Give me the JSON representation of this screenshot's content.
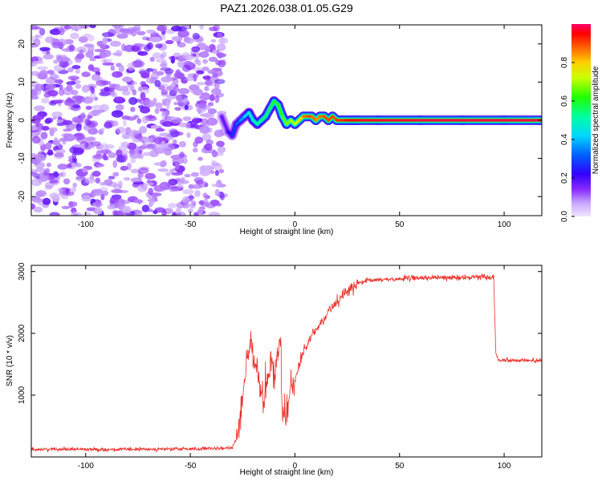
{
  "title": "PAZ1.2026.038.01.05.G29",
  "chart_data": [
    {
      "type": "heatmap",
      "xlabel": "Height of straight line (km)",
      "ylabel": "Frequency (Hz)",
      "xlim": [
        -126,
        118
      ],
      "ylim": [
        -25,
        25
      ],
      "xticks": [
        -100,
        -50,
        0,
        50,
        100
      ],
      "xtick_labels": [
        "-100",
        "-50",
        "0",
        "50",
        "100"
      ],
      "yticks": [
        20,
        10,
        0,
        -10,
        -20
      ],
      "ytick_labels": [
        "20",
        "10",
        "0",
        "-10",
        "-20"
      ],
      "noise_region_x": [
        -126,
        -34
      ],
      "ridge": {
        "x": [
          -35,
          -32,
          -30,
          -28,
          -26,
          -24,
          -22,
          -20,
          -18,
          -16,
          -14,
          -12,
          -10,
          -8,
          -6,
          -4,
          -2,
          0,
          2,
          4,
          6,
          8,
          10,
          12,
          14,
          16,
          18,
          20,
          22,
          24,
          26,
          28,
          30,
          40,
          60,
          80,
          100,
          118
        ],
        "frequency": [
          1,
          -3,
          -4,
          -1,
          0,
          1,
          2,
          0,
          -1,
          0,
          1,
          3,
          5,
          4,
          1,
          -1,
          0,
          -1,
          0,
          1,
          1,
          1,
          0,
          1,
          1,
          0,
          1,
          0,
          0,
          0,
          0,
          0,
          0,
          0,
          0,
          0,
          0,
          0
        ],
        "amplitude": [
          0.15,
          0.2,
          0.25,
          0.3,
          0.35,
          0.4,
          0.45,
          0.5,
          0.5,
          0.55,
          0.55,
          0.55,
          0.6,
          0.6,
          0.65,
          0.65,
          0.7,
          0.7,
          0.75,
          0.85,
          0.9,
          0.9,
          0.85,
          0.85,
          0.9,
          0.9,
          0.9,
          0.9,
          0.92,
          0.93,
          0.95,
          0.95,
          0.96,
          0.97,
          0.98,
          0.98,
          0.98,
          0.98
        ]
      },
      "colorbar": {
        "label": "Normalized spectral amplitude",
        "range": [
          0,
          1
        ],
        "ticks": [
          0.0,
          0.2,
          0.4,
          0.6,
          0.8
        ],
        "tick_labels": [
          "0.0",
          "0.2",
          "0.4",
          "0.6",
          "0.8"
        ]
      }
    },
    {
      "type": "line",
      "xlabel": "Height of straight line (km)",
      "ylabel": "SNR (10 * v/v)",
      "xlim": [
        -126,
        118
      ],
      "ylim": [
        0,
        3100
      ],
      "xticks": [
        -100,
        -50,
        0,
        50,
        100
      ],
      "xtick_labels": [
        "-100",
        "-50",
        "0",
        "50",
        "100"
      ],
      "yticks": [
        1000,
        2000,
        3000
      ],
      "ytick_labels": [
        "1000",
        "2000",
        "3000"
      ],
      "color": "#e8302a",
      "series": [
        {
          "name": "SNR",
          "x": [
            -126,
            -110,
            -90,
            -70,
            -50,
            -35,
            -30,
            -28,
            -26,
            -24,
            -23,
            -22,
            -21,
            -20,
            -18,
            -16,
            -15,
            -13,
            -11,
            -10,
            -8,
            -7,
            -6,
            -4,
            -2,
            0,
            2,
            4,
            6,
            8,
            10,
            12,
            14,
            16,
            18,
            20,
            22,
            24,
            26,
            28,
            30,
            35,
            40,
            50,
            60,
            70,
            80,
            90,
            95,
            96,
            97,
            100,
            110,
            118
          ],
          "y": [
            120,
            130,
            120,
            125,
            130,
            135,
            150,
            300,
            700,
            1300,
            1600,
            1750,
            1900,
            1550,
            1400,
            1050,
            750,
            1300,
            1550,
            1300,
            1700,
            1900,
            800,
            700,
            1100,
            1200,
            1500,
            1700,
            1800,
            1950,
            2050,
            2150,
            2250,
            2350,
            2450,
            2500,
            2600,
            2650,
            2700,
            2750,
            2800,
            2850,
            2870,
            2880,
            2900,
            2900,
            2900,
            2920,
            2910,
            1700,
            1580,
            1570,
            1560,
            1560
          ]
        }
      ]
    }
  ]
}
